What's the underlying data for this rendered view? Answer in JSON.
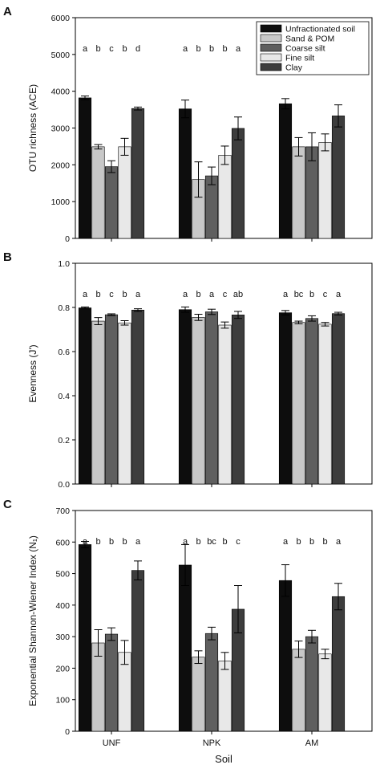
{
  "figure": {
    "xlabel": "Soil"
  },
  "legend": {
    "entries": [
      "Unfractionated soil",
      "Sand & POM",
      "Coarse silt",
      "Fine silt",
      "Clay"
    ],
    "colors": [
      "#0d0d0d",
      "#c8c8c8",
      "#5f5f5f",
      "#e8e8e8",
      "#3d3d3d"
    ]
  },
  "chart_data": [
    {
      "type": "bar",
      "panel": "A",
      "ylabel": "OTU richness (ACE)",
      "ylim": [
        0,
        6000
      ],
      "yticks": [
        0,
        1000,
        2000,
        3000,
        4000,
        5000,
        6000
      ],
      "categories": [
        "UNF",
        "NPK",
        "AM"
      ],
      "series": [
        {
          "name": "Unfractionated soil",
          "values": [
            3820,
            3520,
            3660
          ],
          "errors": [
            50,
            240,
            140
          ]
        },
        {
          "name": "Sand & POM",
          "values": [
            2490,
            1600,
            2490
          ],
          "errors": [
            60,
            480,
            250
          ]
        },
        {
          "name": "Coarse silt",
          "values": [
            1950,
            1700,
            2490
          ],
          "errors": [
            160,
            240,
            380
          ]
        },
        {
          "name": "Fine silt",
          "values": [
            2490,
            2260,
            2610
          ],
          "errors": [
            230,
            250,
            230
          ]
        },
        {
          "name": "Clay",
          "values": [
            3530,
            2990,
            3330
          ],
          "errors": [
            40,
            310,
            300
          ]
        }
      ],
      "letters": [
        [
          "a",
          "b",
          "c",
          "b",
          "d"
        ],
        [
          "a",
          "b",
          "b",
          "b",
          "a"
        ],
        [
          "a",
          "b",
          "b",
          "b",
          "a"
        ]
      ],
      "legend_position": "top-right"
    },
    {
      "type": "bar",
      "panel": "B",
      "ylabel": "Evenness (J')",
      "ylim": [
        0,
        1.0
      ],
      "yticks": [
        "0.0",
        "0.2",
        "0.4",
        "0.6",
        "0.8",
        "1.0"
      ],
      "categories": [
        "UNF",
        "NPK",
        "AM"
      ],
      "series": [
        {
          "name": "Unfractionated soil",
          "values": [
            0.798,
            0.79,
            0.776
          ],
          "errors": [
            0.004,
            0.012,
            0.01
          ]
        },
        {
          "name": "Sand & POM",
          "values": [
            0.738,
            0.755,
            0.732
          ],
          "errors": [
            0.016,
            0.014,
            0.006
          ]
        },
        {
          "name": "Coarse silt",
          "values": [
            0.767,
            0.78,
            0.75
          ],
          "errors": [
            0.004,
            0.012,
            0.012
          ]
        },
        {
          "name": "Fine silt",
          "values": [
            0.73,
            0.72,
            0.724
          ],
          "errors": [
            0.01,
            0.014,
            0.008
          ]
        },
        {
          "name": "Clay",
          "values": [
            0.788,
            0.766,
            0.772
          ],
          "errors": [
            0.006,
            0.016,
            0.006
          ]
        }
      ],
      "letters": [
        [
          "a",
          "b",
          "c",
          "b",
          "a"
        ],
        [
          "a",
          "b",
          "a",
          "c",
          "ab"
        ],
        [
          "a",
          "bc",
          "b",
          "c",
          "a"
        ]
      ]
    },
    {
      "type": "bar",
      "panel": "C",
      "ylabel": "Exponential Shannon-Wiener Index (N₁)",
      "ylim": [
        0,
        700
      ],
      "yticks": [
        0,
        100,
        200,
        300,
        400,
        500,
        600,
        700
      ],
      "categories": [
        "UNF",
        "NPK",
        "AM"
      ],
      "series": [
        {
          "name": "Unfractionated soil",
          "values": [
            592,
            527,
            478
          ],
          "errors": [
            10,
            65,
            50
          ]
        },
        {
          "name": "Sand & POM",
          "values": [
            280,
            235,
            260
          ],
          "errors": [
            42,
            20,
            26
          ]
        },
        {
          "name": "Coarse silt",
          "values": [
            308,
            310,
            300
          ],
          "errors": [
            20,
            20,
            20
          ]
        },
        {
          "name": "Fine silt",
          "values": [
            250,
            223,
            245
          ],
          "errors": [
            38,
            27,
            15
          ]
        },
        {
          "name": "Clay",
          "values": [
            510,
            387,
            427
          ],
          "errors": [
            30,
            75,
            42
          ]
        }
      ],
      "letters": [
        [
          "a",
          "b",
          "b",
          "b",
          "a"
        ],
        [
          "a",
          "b",
          "bc",
          "b",
          "c"
        ],
        [
          "a",
          "b",
          "b",
          "b",
          "a"
        ]
      ]
    }
  ]
}
